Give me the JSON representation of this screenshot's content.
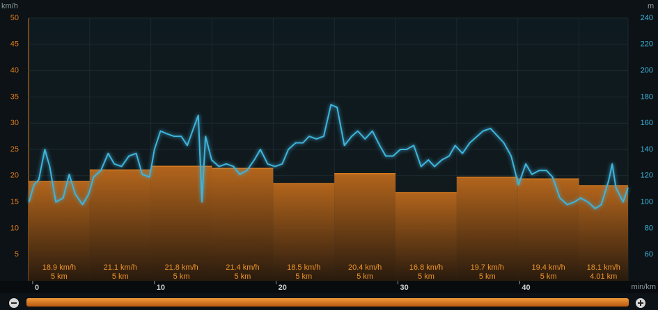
{
  "chart_data": {
    "type": "bar",
    "ylabel": "km/h",
    "y2label": "m",
    "xlabel": "min/km",
    "ylim": [
      0,
      50
    ],
    "yticks": [
      5,
      10,
      15,
      20,
      25,
      30,
      35,
      40,
      45,
      50
    ],
    "y2lim": [
      40,
      240
    ],
    "y2ticks": [
      60,
      80,
      100,
      120,
      140,
      160,
      180,
      200,
      220,
      240
    ],
    "xlim": [
      -0.34,
      48.9
    ],
    "xticks": [
      0,
      10,
      20,
      30,
      40
    ],
    "grid": true,
    "color": "#d67a1f",
    "values": [
      18.9,
      21.1,
      21.8,
      21.4,
      18.5,
      20.4,
      16.8,
      19.7,
      19.4,
      18.1
    ],
    "value_labels": [
      "18.9 km/h",
      "21.1 km/h",
      "21.8 km/h",
      "21.4 km/h",
      "18.5 km/h",
      "20.4 km/h",
      "16.8 km/h",
      "19.7 km/h",
      "19.4 km/h",
      "18.1 km/h"
    ],
    "distances": [
      5,
      5,
      5,
      5,
      5,
      5,
      5,
      5,
      5,
      4.01
    ],
    "distance_labels": [
      "5 km",
      "5 km",
      "5 km",
      "5 km",
      "5 km",
      "5 km",
      "5 km",
      "5 km",
      "5 km",
      "4.01 km"
    ],
    "line": {
      "type": "line",
      "axis": "y2",
      "color": "#3fb4dc",
      "x": [
        -0.3,
        0.1,
        0.5,
        1.0,
        1.4,
        1.9,
        2.5,
        3.0,
        3.5,
        4.1,
        4.6,
        5.0,
        5.6,
        6.2,
        6.7,
        7.3,
        7.9,
        8.5,
        9.0,
        9.6,
        10.0,
        10.5,
        11.0,
        11.6,
        12.2,
        12.7,
        13.2,
        13.6,
        13.9,
        14.2,
        14.7,
        15.3,
        15.9,
        16.5,
        17.0,
        17.6,
        18.2,
        18.7,
        19.3,
        19.9,
        20.5,
        21.0,
        21.6,
        22.2,
        22.7,
        23.3,
        23.9,
        24.5,
        25.0,
        25.6,
        26.2,
        26.7,
        27.3,
        27.9,
        28.5,
        29.0,
        29.6,
        30.2,
        30.7,
        31.3,
        31.9,
        32.5,
        33.0,
        33.6,
        34.2,
        34.7,
        35.3,
        35.9,
        36.5,
        37.0,
        37.6,
        38.2,
        38.7,
        39.3,
        39.9,
        40.5,
        41.0,
        41.6,
        42.2,
        42.7,
        43.3,
        43.9,
        44.5,
        45.0,
        45.6,
        46.2,
        46.7,
        47.3,
        47.6,
        47.9,
        48.5,
        48.9
      ],
      "values": [
        100,
        113,
        117,
        140,
        127,
        100,
        103,
        121,
        106,
        98,
        106,
        119,
        124,
        137,
        129,
        127,
        135,
        137,
        121,
        119,
        140,
        154,
        152,
        150,
        150,
        143,
        156,
        166,
        100,
        150,
        132,
        127,
        129,
        127,
        121,
        124,
        132,
        140,
        129,
        127,
        129,
        140,
        145,
        145,
        150,
        148,
        150,
        174,
        172,
        143,
        150,
        154,
        148,
        154,
        143,
        135,
        135,
        140,
        140,
        143,
        127,
        132,
        127,
        132,
        135,
        143,
        137,
        145,
        150,
        154,
        156,
        150,
        145,
        135,
        113,
        129,
        121,
        124,
        124,
        119,
        103,
        98,
        100,
        103,
        100,
        95,
        98,
        116,
        129,
        111,
        100,
        111
      ]
    }
  }
}
